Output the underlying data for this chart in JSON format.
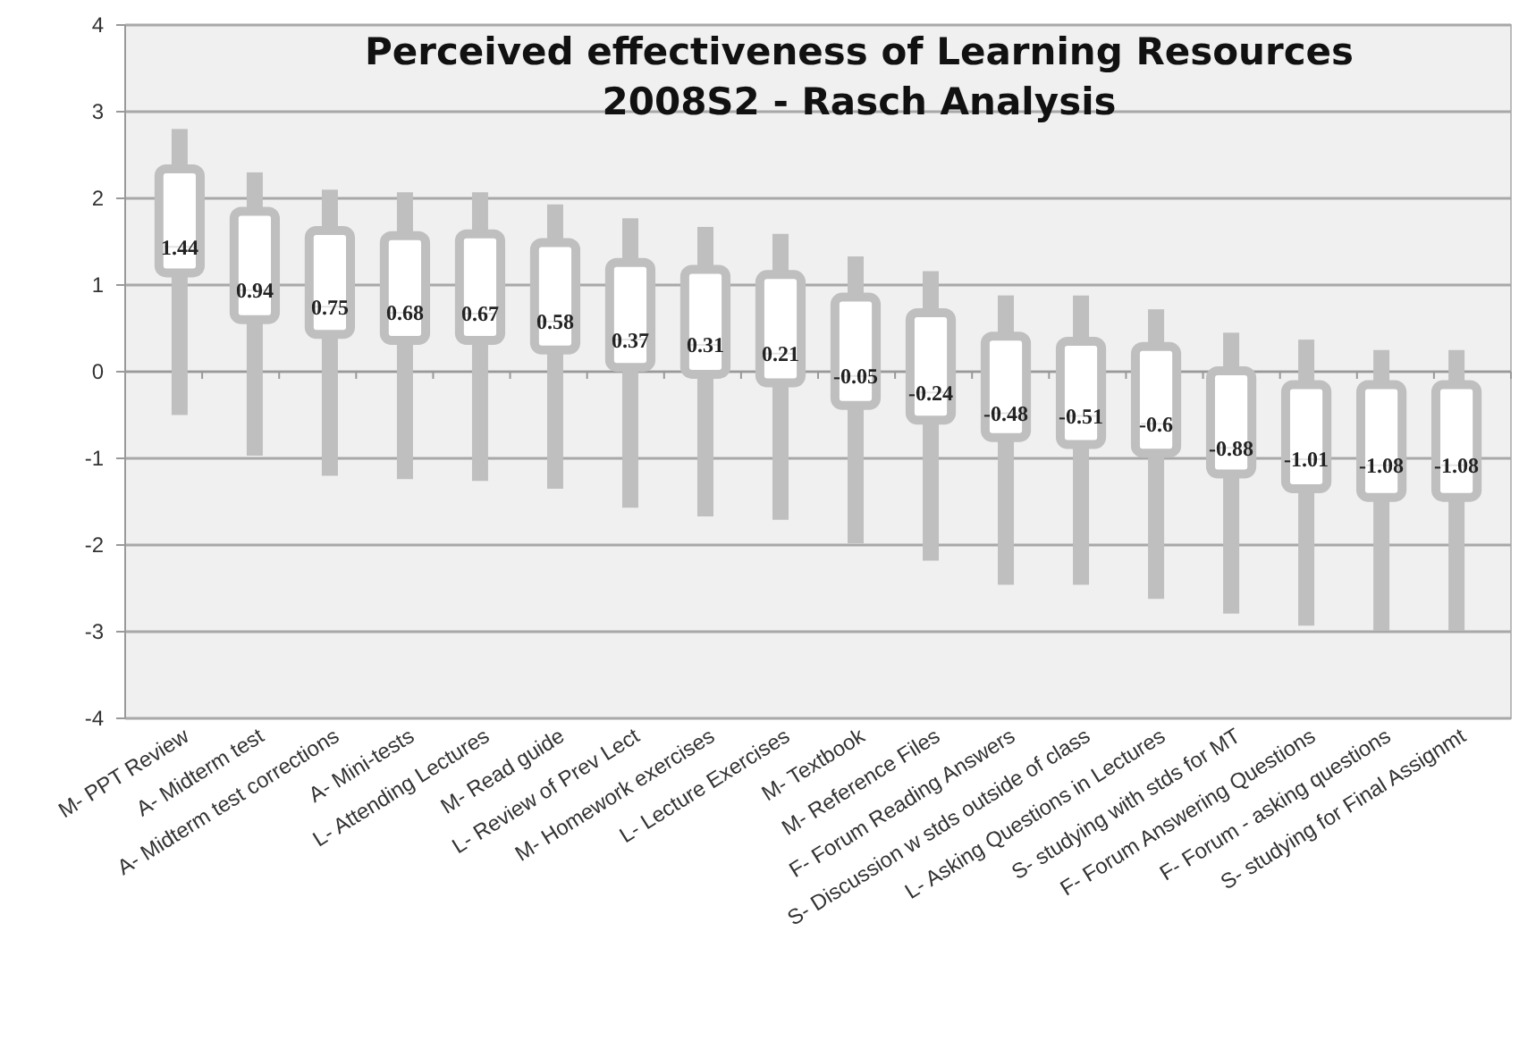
{
  "chart_data": {
    "type": "box",
    "title": "Perceived effectiveness of Learning Resources\n2008S2 - Rasch Analysis",
    "categories": [
      "M- PPT Review",
      "A- Midterm test",
      "A- Midterm test corrections",
      "A- Mini-tests",
      "L- Attending Lectures",
      "M- Read guide",
      "L- Review of Prev Lect",
      "M- Homework exercises",
      "L- Lecture Exercises",
      "M- Textbook",
      "M- Reference Files",
      "F- Forum Reading Answers",
      "S- Discussion w stds outside of class",
      "L- Asking Questions in Lectures",
      "S- studying with stds for MT",
      "F- Forum Answering Questions",
      "F- Forum - asking questions",
      "S- studying for Final Assignmt"
    ],
    "boxes": [
      {
        "low": -0.5,
        "q1": 1.14,
        "median": 1.44,
        "q3": 2.34,
        "high": 2.8
      },
      {
        "low": -0.97,
        "q1": 0.6,
        "median": 0.94,
        "q3": 1.85,
        "high": 2.3
      },
      {
        "low": -1.2,
        "q1": 0.43,
        "median": 0.75,
        "q3": 1.63,
        "high": 2.1
      },
      {
        "low": -1.24,
        "q1": 0.36,
        "median": 0.68,
        "q3": 1.57,
        "high": 2.07
      },
      {
        "low": -1.26,
        "q1": 0.36,
        "median": 0.67,
        "q3": 1.59,
        "high": 2.07
      },
      {
        "low": -1.35,
        "q1": 0.25,
        "median": 0.58,
        "q3": 1.49,
        "high": 1.93
      },
      {
        "low": -1.57,
        "q1": 0.05,
        "median": 0.37,
        "q3": 1.26,
        "high": 1.77
      },
      {
        "low": -1.67,
        "q1": -0.03,
        "median": 0.31,
        "q3": 1.18,
        "high": 1.67
      },
      {
        "low": -1.71,
        "q1": -0.13,
        "median": 0.21,
        "q3": 1.12,
        "high": 1.59
      },
      {
        "low": -1.98,
        "q1": -0.39,
        "median": -0.05,
        "q3": 0.86,
        "high": 1.33
      },
      {
        "low": -2.18,
        "q1": -0.56,
        "median": -0.24,
        "q3": 0.68,
        "high": 1.16
      },
      {
        "low": -2.46,
        "q1": -0.76,
        "median": -0.48,
        "q3": 0.41,
        "high": 0.88
      },
      {
        "low": -2.46,
        "q1": -0.84,
        "median": -0.51,
        "q3": 0.35,
        "high": 0.88
      },
      {
        "low": -2.62,
        "q1": -0.94,
        "median": -0.6,
        "q3": 0.29,
        "high": 0.72
      },
      {
        "low": -2.79,
        "q1": -1.18,
        "median": -0.88,
        "q3": 0.01,
        "high": 0.45
      },
      {
        "low": -2.93,
        "q1": -1.35,
        "median": -1.01,
        "q3": -0.15,
        "high": 0.37
      },
      {
        "low": -2.99,
        "q1": -1.45,
        "median": -1.08,
        "q3": -0.15,
        "high": 0.25
      },
      {
        "low": -2.99,
        "q1": -1.45,
        "median": -1.08,
        "q3": -0.15,
        "high": 0.25
      }
    ],
    "color": "#bfbfbf",
    "ylim": [
      -4,
      4
    ],
    "yticks": [
      -4,
      -3,
      -2,
      -1,
      0,
      1,
      2,
      3,
      4
    ],
    "grid": "y",
    "annotations": [
      {
        "text": "1.44",
        "x": "M- PPT Review",
        "y": 1.44
      },
      {
        "text": "0.94",
        "x": "A- Midterm test",
        "y": 0.94
      },
      {
        "text": "0.75",
        "x": "A- Midterm test corrections",
        "y": 0.75
      },
      {
        "text": "0.68",
        "x": "A- Mini-tests",
        "y": 0.68
      },
      {
        "text": "0.67",
        "x": "L- Attending Lectures",
        "y": 0.67
      },
      {
        "text": "0.58",
        "x": "M- Read guide",
        "y": 0.58
      },
      {
        "text": "0.37",
        "x": "L- Review of Prev Lect",
        "y": 0.37
      },
      {
        "text": "0.31",
        "x": "M- Homework exercises",
        "y": 0.31
      },
      {
        "text": "0.21",
        "x": "L- Lecture Exercises",
        "y": 0.21
      },
      {
        "text": "-0.05",
        "x": "M- Textbook",
        "y": -0.05
      },
      {
        "text": "-0.24",
        "x": "M- Reference Files",
        "y": -0.24
      },
      {
        "text": "-0.48",
        "x": "F- Forum Reading Answers",
        "y": -0.48
      },
      {
        "text": "-0.51",
        "x": "S- Discussion w stds outside of class",
        "y": -0.51
      },
      {
        "text": "-0.6",
        "x": "L- Asking Questions in Lectures",
        "y": -0.6
      },
      {
        "text": "-0.88",
        "x": "S- studying with stds for MT",
        "y": -0.88
      },
      {
        "text": "-1.01",
        "x": "F- Forum Answering Questions",
        "y": -1.01
      },
      {
        "text": "-1.08",
        "x": "F- Forum - asking questions",
        "y": -1.08
      },
      {
        "text": "-1.08",
        "x": "S- studying for Final Assignmt",
        "y": -1.08
      }
    ]
  }
}
